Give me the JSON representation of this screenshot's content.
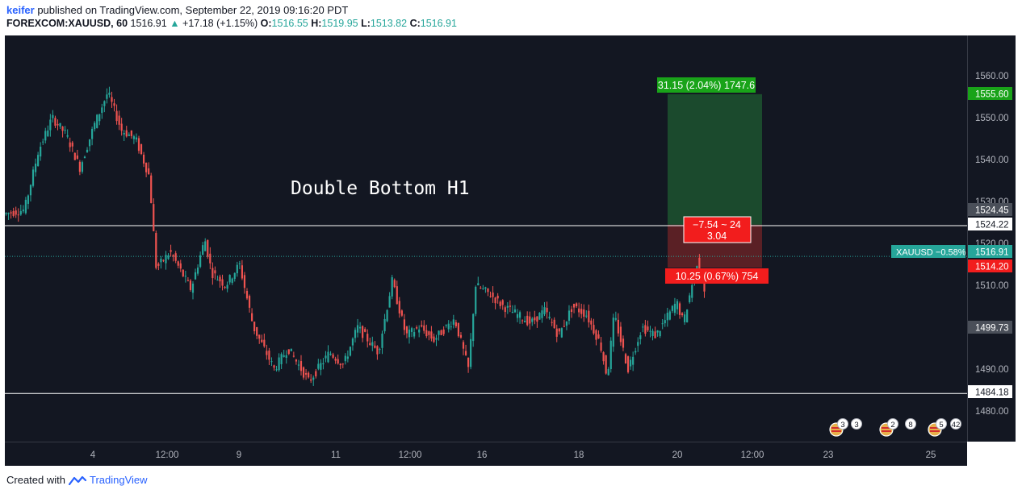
{
  "header": {
    "author": "keifer",
    "published_text": "published on TradingView.com, September 22, 2019 09:16:20 PDT",
    "symbol": "FOREXCOM:XAUUSD, 60",
    "last": "1516.91",
    "change": "+17.18 (+1.15%)",
    "open_label": "O:",
    "open": "1516.55",
    "high_label": "H:",
    "high": "1519.95",
    "low_label": "L:",
    "low": "1513.82",
    "close_label": "C:",
    "close": "1516.91"
  },
  "footer": {
    "created_with": "Created with",
    "brand": "TradingView"
  },
  "colors": {
    "background": "#131722",
    "up": "#26a69a",
    "down": "#ef5350",
    "target_zone": "#1b4a2d",
    "stop_zone": "#5a2025",
    "price_line": "#26a69a",
    "level_line": "#ffffff"
  },
  "chart_data": {
    "type": "candlestick",
    "symbol": "FOREXCOM:XAUUSD",
    "interval": "60",
    "annotation": "Double Bottom H1",
    "ylim": [
      1471,
      1565
    ],
    "y_ticks": [
      "1560.00",
      "1550.00",
      "1540.00",
      "1530.00",
      "1520.00",
      "1510.00",
      "1490.00",
      "1480.00"
    ],
    "x_ticks": [
      "4",
      "12:00",
      "9",
      "11",
      "12:00",
      "16",
      "18",
      "20",
      "12:00",
      "23",
      "25"
    ],
    "horizontal_levels": [
      "1524.22",
      "1484.18"
    ],
    "price_labels": {
      "target": "1555.60",
      "level_upper": "1524.45",
      "level_1524": "1524.22",
      "current": "1516.91",
      "current_label": "XAUUSD −0.58%",
      "stop": "1514.20",
      "mid": "1499.73",
      "level_1484": "1484.18"
    },
    "position": {
      "entry": 1524.45,
      "target": 1555.6,
      "stop": 1514.2,
      "target_label": "31.15 (2.04%) 1747.6",
      "stop_label": "10.25 (0.67%) 754",
      "ratio_label_line1": "−7.54 ~ 24",
      "ratio_label_line2": "3.04"
    },
    "event_markers": [
      "3",
      "3",
      "2",
      "8",
      "5",
      "42"
    ],
    "path_points": [
      [
        1,
        1527
      ],
      [
        4,
        1528
      ],
      [
        6,
        1542
      ],
      [
        8,
        1550
      ],
      [
        10,
        1546
      ],
      [
        12,
        1538
      ],
      [
        14,
        1548
      ],
      [
        16,
        1556
      ],
      [
        18,
        1547
      ],
      [
        20,
        1545
      ],
      [
        22,
        1536
      ],
      [
        23,
        1514
      ],
      [
        25,
        1518
      ],
      [
        28,
        1509
      ],
      [
        30,
        1521
      ],
      [
        31,
        1513
      ],
      [
        33,
        1510
      ],
      [
        35,
        1515
      ],
      [
        37,
        1500
      ],
      [
        40,
        1490
      ],
      [
        42,
        1495
      ],
      [
        45,
        1487
      ],
      [
        48,
        1494
      ],
      [
        50,
        1491
      ],
      [
        52,
        1500
      ],
      [
        55,
        1494
      ],
      [
        57,
        1511
      ],
      [
        59,
        1498
      ],
      [
        61,
        1500
      ],
      [
        63,
        1497
      ],
      [
        66,
        1502
      ],
      [
        68,
        1490
      ],
      [
        69,
        1510
      ],
      [
        71,
        1508
      ],
      [
        73,
        1505
      ],
      [
        75,
        1503
      ],
      [
        77,
        1501
      ],
      [
        79,
        1504
      ],
      [
        81,
        1498
      ],
      [
        83,
        1505
      ],
      [
        85,
        1503
      ],
      [
        87,
        1496
      ],
      [
        88,
        1488
      ],
      [
        89,
        1503
      ],
      [
        91,
        1490
      ],
      [
        93,
        1500
      ],
      [
        95,
        1498
      ],
      [
        98,
        1506
      ],
      [
        99,
        1501
      ],
      [
        101,
        1516
      ],
      [
        102,
        1509
      ]
    ]
  }
}
